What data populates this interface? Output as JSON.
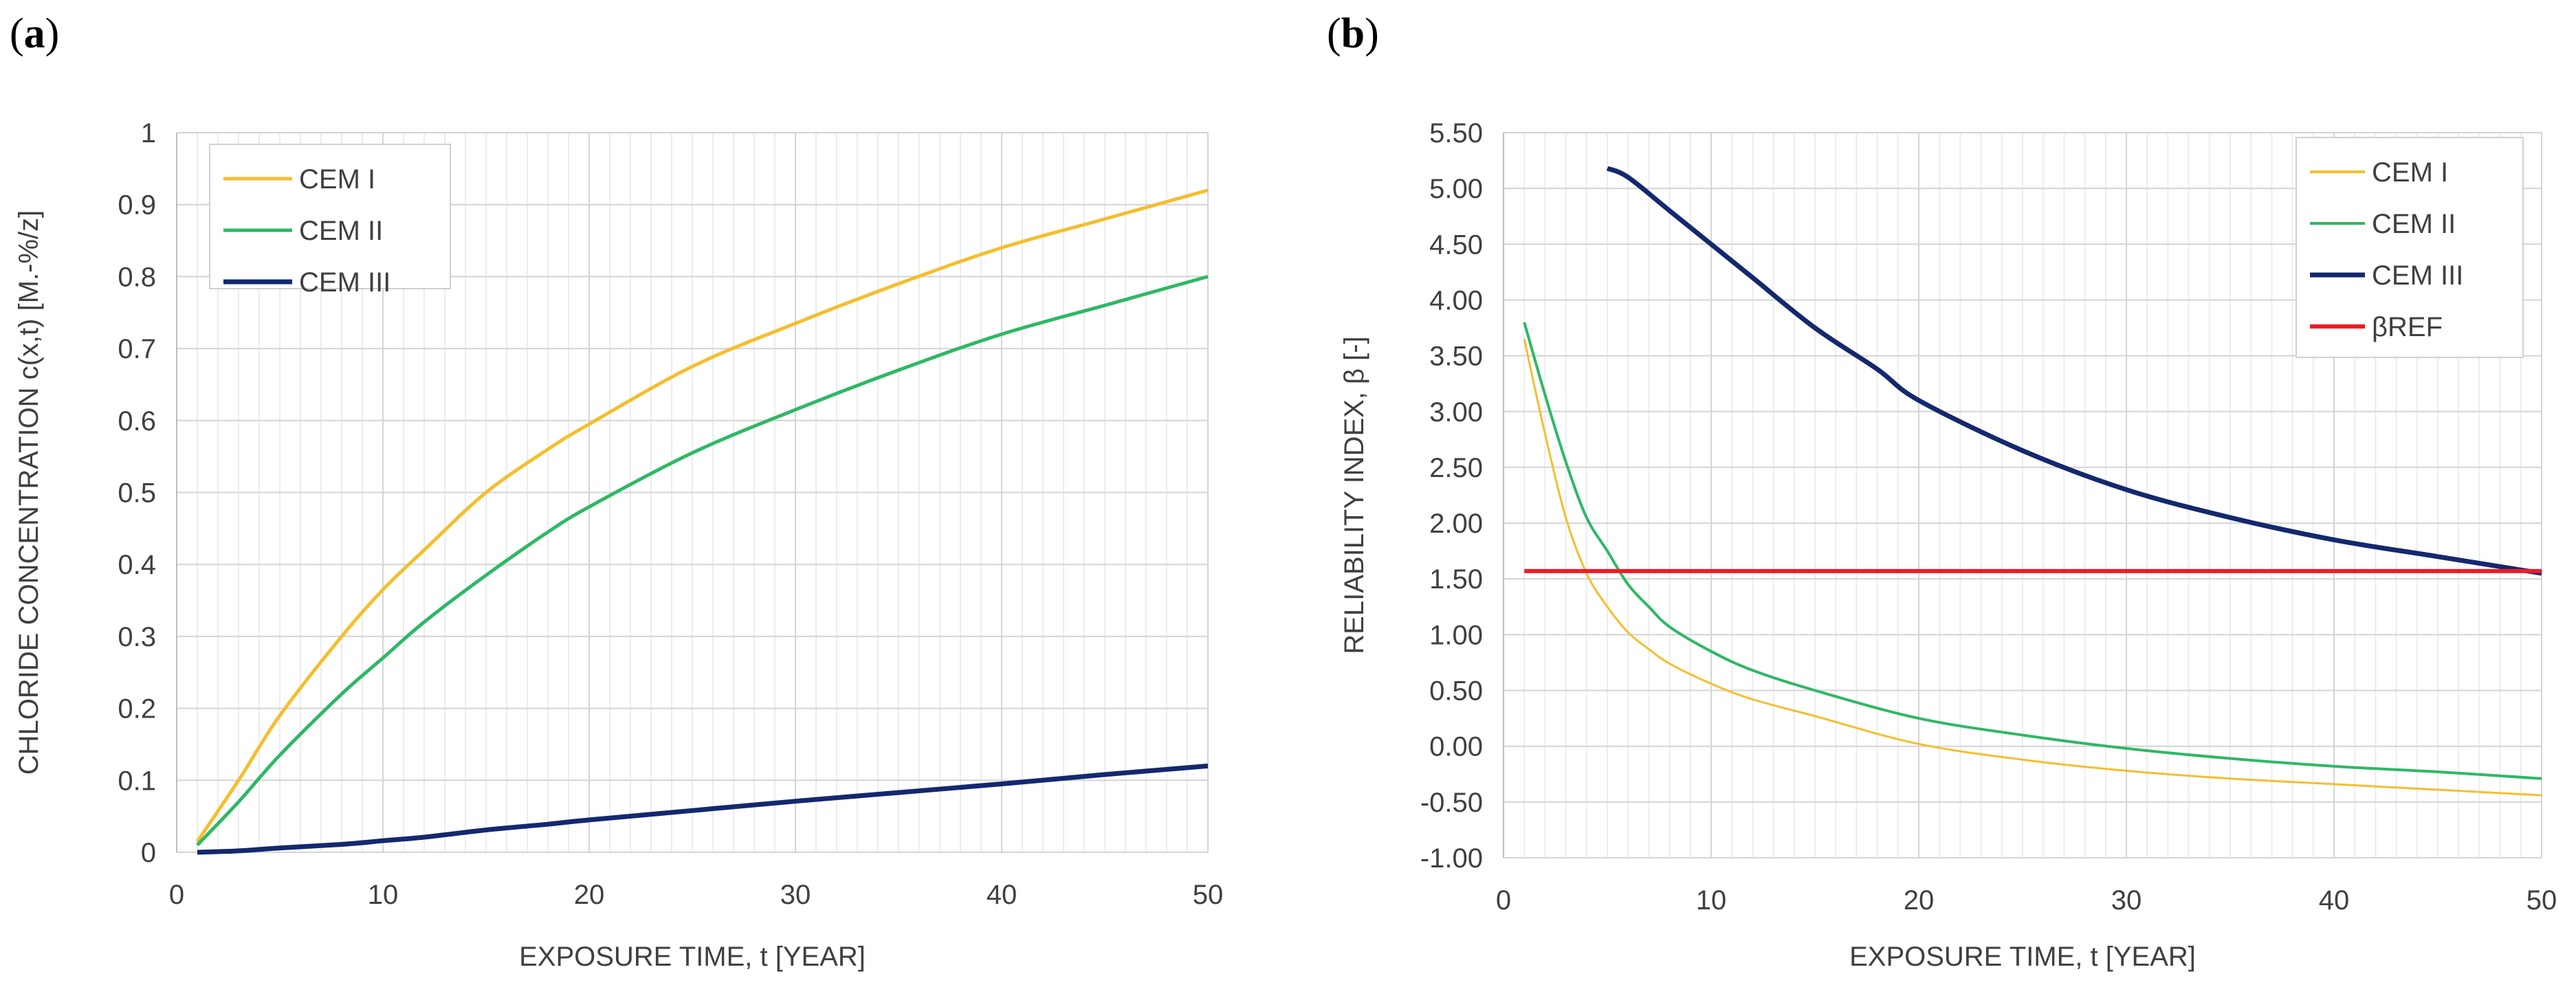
{
  "panels": {
    "a_label": "a",
    "b_label": "b"
  },
  "chart_data": [
    {
      "id": "a",
      "type": "line",
      "title": "",
      "xlabel": "EXPOSURE TIME, t [YEAR]",
      "ylabel": "CHLORIDE CONCENTRATION c(x,t)  [M.-%/z]",
      "xlim": [
        0,
        50
      ],
      "ylim": [
        0,
        1
      ],
      "xticks": [
        0,
        10,
        20,
        30,
        40,
        50
      ],
      "yticks": [
        0,
        0.1,
        0.2,
        0.3,
        0.4,
        0.5,
        0.6,
        0.7,
        0.8,
        0.9,
        1
      ],
      "ytick_labels": [
        "0",
        "0.1",
        "0.2",
        "0.3",
        "0.4",
        "0.5",
        "0.6",
        "0.7",
        "0.8",
        "0.9",
        "1"
      ],
      "grid": true,
      "legend_position": "top-left",
      "series": [
        {
          "name": "CEM I",
          "color": "#F5BE2E",
          "x": [
            1,
            3,
            5,
            8,
            10,
            12,
            15,
            18,
            20,
            25,
            30,
            35,
            40,
            45,
            50
          ],
          "values": [
            0.015,
            0.1,
            0.19,
            0.3,
            0.365,
            0.42,
            0.5,
            0.56,
            0.595,
            0.675,
            0.735,
            0.79,
            0.84,
            0.88,
            0.92
          ]
        },
        {
          "name": "CEM II",
          "color": "#2EB865",
          "x": [
            1,
            3,
            5,
            8,
            10,
            12,
            15,
            18,
            20,
            25,
            30,
            35,
            40,
            45,
            50
          ],
          "values": [
            0.01,
            0.07,
            0.135,
            0.22,
            0.27,
            0.32,
            0.385,
            0.445,
            0.48,
            0.555,
            0.615,
            0.67,
            0.72,
            0.76,
            0.8
          ]
        },
        {
          "name": "CEM III",
          "color": "#14286E",
          "x": [
            1,
            3,
            5,
            8,
            10,
            12,
            15,
            18,
            20,
            25,
            30,
            35,
            40,
            45,
            50
          ],
          "values": [
            0.0,
            0.002,
            0.006,
            0.011,
            0.016,
            0.021,
            0.031,
            0.039,
            0.045,
            0.058,
            0.071,
            0.083,
            0.095,
            0.108,
            0.12
          ]
        }
      ]
    },
    {
      "id": "b",
      "type": "line",
      "title": "",
      "xlabel": "EXPOSURE TIME, t [YEAR]",
      "ylabel": "RELIABILITY INDEX, β [-]",
      "xlim": [
        0,
        50
      ],
      "ylim": [
        -1,
        5.5
      ],
      "xticks": [
        0,
        10,
        20,
        30,
        40,
        50
      ],
      "yticks": [
        -1,
        -0.5,
        0,
        0.5,
        1,
        1.5,
        2,
        2.5,
        3,
        3.5,
        4,
        4.5,
        5,
        5.5
      ],
      "ytick_labels": [
        "-1.00",
        "-0.50",
        "0.00",
        "0.50",
        "1.00",
        "1.50",
        "2.00",
        "2.50",
        "3.00",
        "3.50",
        "4.00",
        "4.50",
        "5.00",
        "5.50"
      ],
      "grid": true,
      "legend_position": "top-right",
      "series": [
        {
          "name": "CEM I",
          "color": "#F5BE2E",
          "width": 3,
          "x": [
            1,
            2,
            3,
            4,
            5,
            6,
            7,
            8,
            10,
            12,
            15,
            20,
            25,
            30,
            35,
            40,
            45,
            50
          ],
          "values": [
            3.65,
            2.8,
            2.05,
            1.55,
            1.25,
            1.02,
            0.87,
            0.74,
            0.56,
            0.42,
            0.27,
            0.02,
            -0.12,
            -0.22,
            -0.29,
            -0.34,
            -0.39,
            -0.44
          ]
        },
        {
          "name": "CEM II",
          "color": "#2EB865",
          "width": 4,
          "x": [
            1,
            2,
            3,
            4,
            5,
            6,
            7,
            8,
            10,
            12,
            15,
            20,
            25,
            30,
            35,
            40,
            45,
            50
          ],
          "values": [
            3.8,
            3.15,
            2.55,
            2.05,
            1.75,
            1.45,
            1.25,
            1.07,
            0.85,
            0.68,
            0.5,
            0.25,
            0.1,
            -0.02,
            -0.11,
            -0.18,
            -0.23,
            -0.29
          ]
        },
        {
          "name": "CEM III",
          "color": "#14286E",
          "width": 7,
          "x": [
            5,
            6,
            8,
            10,
            12,
            15,
            18,
            20,
            25,
            30,
            35,
            40,
            45,
            50
          ],
          "values": [
            5.18,
            5.1,
            4.8,
            4.5,
            4.2,
            3.75,
            3.38,
            3.1,
            2.65,
            2.3,
            2.05,
            1.85,
            1.7,
            1.55
          ]
        },
        {
          "name": "βREF",
          "color": "#EE1C25",
          "width": 6,
          "x": [
            1,
            50
          ],
          "values": [
            1.57,
            1.57
          ]
        }
      ]
    }
  ]
}
